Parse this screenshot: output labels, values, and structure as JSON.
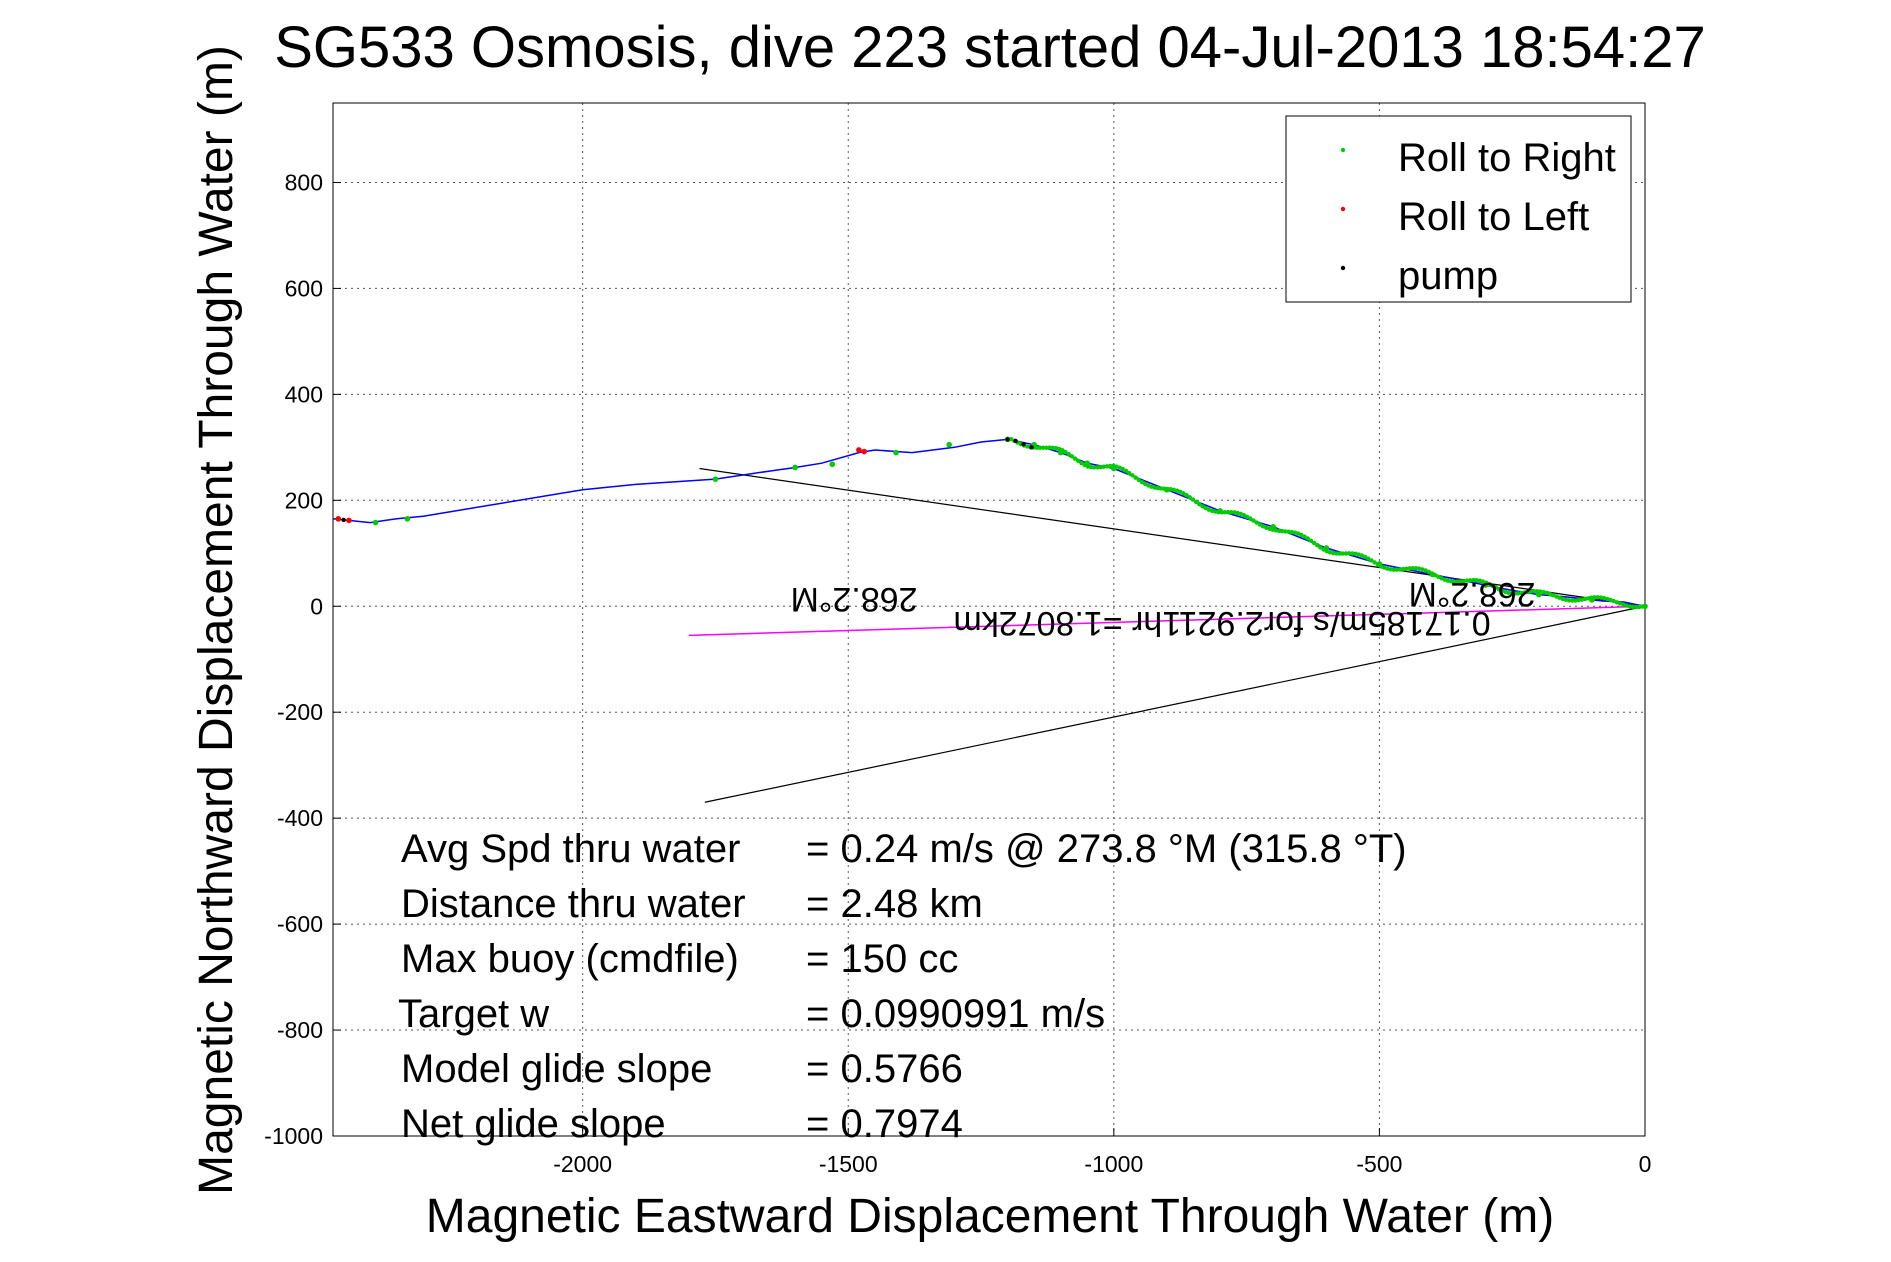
{
  "chart_data": {
    "type": "line",
    "title": "SG533 Osmosis, dive 223 started 04-Jul-2013 18:54:27",
    "xlabel": "Magnetic Eastward Displacement Through Water (m)",
    "ylabel": "Magnetic Northward Displacement Through Water (m)",
    "xlim": [
      -2470,
      0
    ],
    "ylim": [
      -1000,
      950
    ],
    "xticks": [
      -2000,
      -1500,
      -1000,
      -500,
      0
    ],
    "yticks": [
      800,
      600,
      400,
      200,
      0,
      -200,
      -400,
      -600,
      -800,
      -1000
    ],
    "grid": true,
    "legend_placement": "top-right",
    "legend": [
      {
        "label": "Roll to Right",
        "color": "#00cc00"
      },
      {
        "label": "Roll to Left",
        "color": "#ff0000"
      },
      {
        "label": "pump",
        "color": "#000000"
      }
    ],
    "track": {
      "color": "#0000ff",
      "x": [
        0,
        -40,
        -80,
        -150,
        -200,
        -250,
        -300,
        -400,
        -500,
        -550,
        -600,
        -700,
        -800,
        -900,
        -1000,
        -1050,
        -1100,
        -1150,
        -1200,
        -1250,
        -1300,
        -1380,
        -1450,
        -1480,
        -1550,
        -1600,
        -1650,
        -1750,
        -1900,
        -2000,
        -2150,
        -2300,
        -2350,
        -2400,
        -2470
      ],
      "y": [
        0,
        8,
        10,
        18,
        22,
        30,
        40,
        60,
        80,
        95,
        110,
        150,
        180,
        220,
        260,
        270,
        290,
        305,
        315,
        310,
        300,
        290,
        295,
        290,
        270,
        262,
        255,
        240,
        230,
        220,
        195,
        170,
        165,
        158,
        165
      ]
    },
    "roll_right": {
      "x": [
        0,
        -100,
        -200,
        -300,
        -400,
        -500,
        -600,
        -700,
        -800,
        -900,
        -1000,
        -1050,
        -1100,
        -1150,
        -1200,
        -1310,
        -1410,
        -1530,
        -1600,
        -1750,
        -2330,
        -2390
      ],
      "y": [
        0,
        12,
        22,
        40,
        60,
        80,
        110,
        150,
        180,
        220,
        260,
        270,
        290,
        305,
        315,
        305,
        290,
        268,
        262,
        240,
        165,
        158
      ]
    },
    "roll_left": {
      "x": [
        -1480,
        -1470,
        -2440,
        -2460
      ],
      "y": [
        295,
        292,
        162,
        165
      ]
    },
    "pump": {
      "x": [
        -1200,
        -1185,
        -1170,
        -1155,
        -2450
      ],
      "y": [
        315,
        312,
        306,
        300,
        163
      ]
    },
    "current": {
      "color": "#ff00ff",
      "x": [
        0,
        -1800
      ],
      "y": [
        0,
        -55
      ]
    },
    "cone": {
      "color": "#000000",
      "x1": [
        0,
        -1780
      ],
      "y1": [
        0,
        260
      ],
      "x2": [
        0,
        -1770
      ],
      "y2": [
        0,
        -370
      ]
    },
    "annotations": {
      "heading_near": "268.2°M",
      "heading_far": "268.2°M",
      "current_text": "0.17185m/s for2.9211hr =1.8072km"
    },
    "stats": [
      {
        "label": "Avg Spd thru water",
        "value": "=  0.24 m/s @ 273.8 °M (315.8 °T)"
      },
      {
        "label": "Distance thru water",
        "value": "=  2.48 km"
      },
      {
        "label": "Max buoy (cmdfile)",
        "value": "= 150 cc"
      },
      {
        "label": "Target w",
        "value": "= 0.0990991 m/s"
      },
      {
        "label": "Model glide slope",
        "value": "= 0.5766"
      },
      {
        "label": "Net glide slope",
        "value": "= 0.7974"
      }
    ]
  }
}
